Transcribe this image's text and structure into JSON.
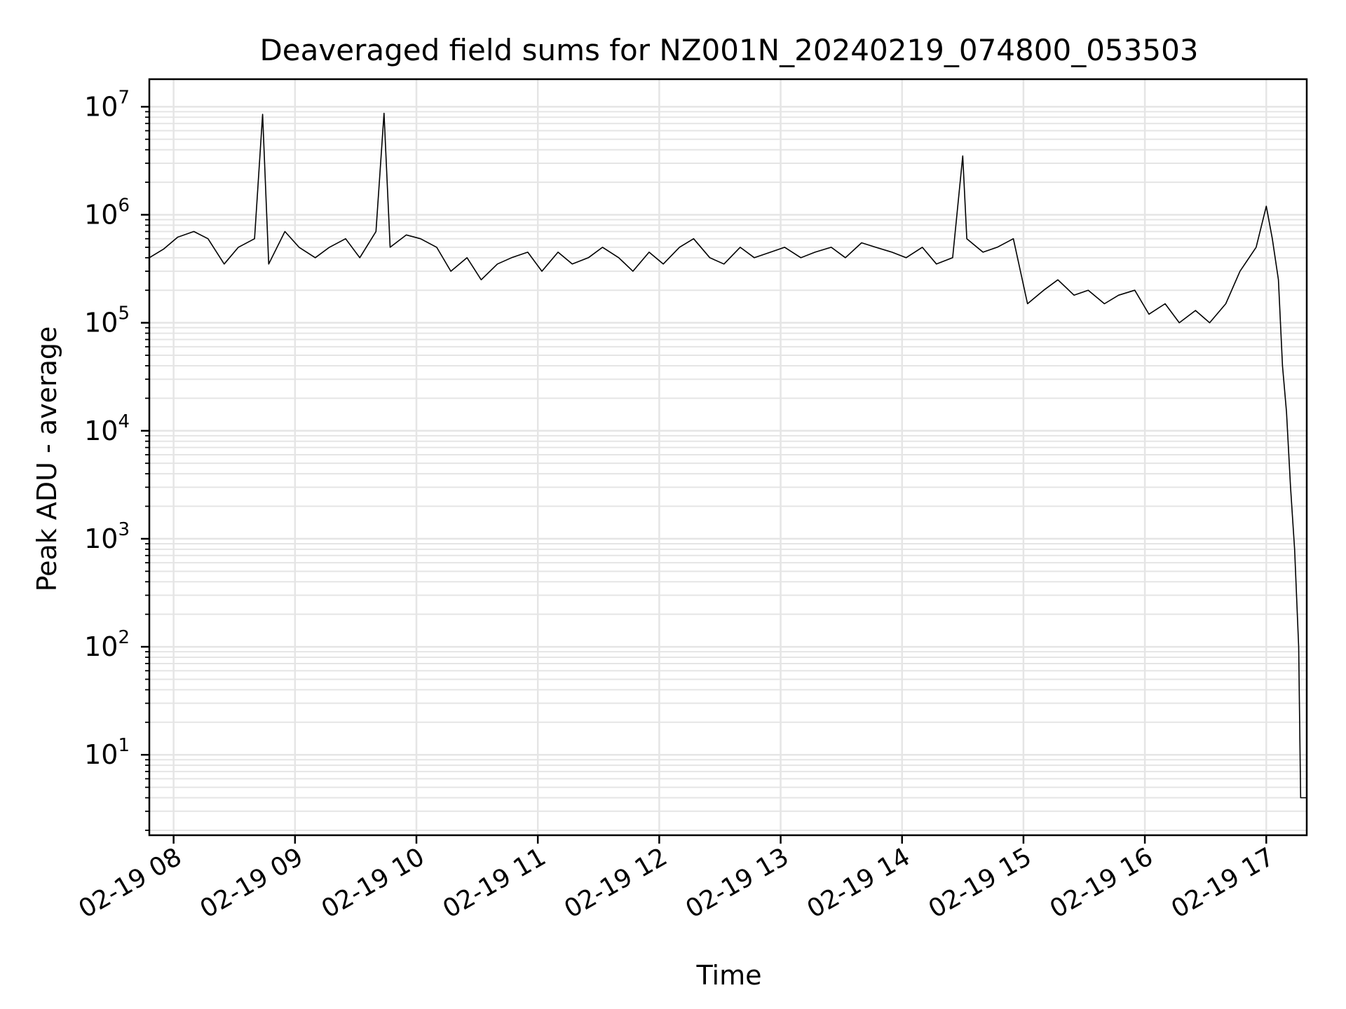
{
  "chart_data": {
    "type": "line",
    "title": "Deaveraged field sums for NZ001N_20240219_074800_053503",
    "xlabel": "Time",
    "ylabel": "Peak ADU - average",
    "yscale": "log",
    "grid": true,
    "grid_minor": true,
    "line_color": "#000000",
    "grid_color": "#e5e5e5",
    "xlim": [
      "2024-02-19 07:48",
      "2024-02-19 17:20"
    ],
    "ylim": [
      1.8,
      18000000
    ],
    "xticks": [
      {
        "value": "2024-02-19 08:00",
        "label": "02-19 08"
      },
      {
        "value": "2024-02-19 09:00",
        "label": "02-19 09"
      },
      {
        "value": "2024-02-19 10:00",
        "label": "02-19 10"
      },
      {
        "value": "2024-02-19 11:00",
        "label": "02-19 11"
      },
      {
        "value": "2024-02-19 12:00",
        "label": "02-19 12"
      },
      {
        "value": "2024-02-19 13:00",
        "label": "02-19 13"
      },
      {
        "value": "2024-02-19 14:00",
        "label": "02-19 14"
      },
      {
        "value": "2024-02-19 15:00",
        "label": "02-19 15"
      },
      {
        "value": "2024-02-19 16:00",
        "label": "02-19 16"
      },
      {
        "value": "2024-02-19 17:00",
        "label": "02-19 17"
      }
    ],
    "yticks": [
      {
        "value": 10,
        "base": "10",
        "exp": "1"
      },
      {
        "value": 100,
        "base": "10",
        "exp": "2"
      },
      {
        "value": 1000,
        "base": "10",
        "exp": "3"
      },
      {
        "value": 10000,
        "base": "10",
        "exp": "4"
      },
      {
        "value": 100000,
        "base": "10",
        "exp": "5"
      },
      {
        "value": 1000000,
        "base": "10",
        "exp": "6"
      },
      {
        "value": 10000000,
        "base": "10",
        "exp": "7"
      }
    ],
    "series": [
      {
        "x": [
          "2024-02-19 07:48",
          "2024-02-19 07:55",
          "2024-02-19 08:02",
          "2024-02-19 08:10",
          "2024-02-19 08:17",
          "2024-02-19 08:25",
          "2024-02-19 08:32",
          "2024-02-19 08:40",
          "2024-02-19 08:44",
          "2024-02-19 08:47",
          "2024-02-19 08:55",
          "2024-02-19 09:02",
          "2024-02-19 09:10",
          "2024-02-19 09:17",
          "2024-02-19 09:25",
          "2024-02-19 09:32",
          "2024-02-19 09:40",
          "2024-02-19 09:44",
          "2024-02-19 09:47",
          "2024-02-19 09:55",
          "2024-02-19 10:02",
          "2024-02-19 10:10",
          "2024-02-19 10:17",
          "2024-02-19 10:25",
          "2024-02-19 10:32",
          "2024-02-19 10:40",
          "2024-02-19 10:47",
          "2024-02-19 10:55",
          "2024-02-19 11:02",
          "2024-02-19 11:10",
          "2024-02-19 11:17",
          "2024-02-19 11:25",
          "2024-02-19 11:32",
          "2024-02-19 11:40",
          "2024-02-19 11:47",
          "2024-02-19 11:55",
          "2024-02-19 12:02",
          "2024-02-19 12:10",
          "2024-02-19 12:17",
          "2024-02-19 12:25",
          "2024-02-19 12:32",
          "2024-02-19 12:40",
          "2024-02-19 12:47",
          "2024-02-19 12:55",
          "2024-02-19 13:02",
          "2024-02-19 13:10",
          "2024-02-19 13:17",
          "2024-02-19 13:25",
          "2024-02-19 13:32",
          "2024-02-19 13:40",
          "2024-02-19 13:47",
          "2024-02-19 13:55",
          "2024-02-19 14:02",
          "2024-02-19 14:10",
          "2024-02-19 14:17",
          "2024-02-19 14:25",
          "2024-02-19 14:30",
          "2024-02-19 14:32",
          "2024-02-19 14:40",
          "2024-02-19 14:47",
          "2024-02-19 14:55",
          "2024-02-19 15:02",
          "2024-02-19 15:10",
          "2024-02-19 15:17",
          "2024-02-19 15:25",
          "2024-02-19 15:32",
          "2024-02-19 15:40",
          "2024-02-19 15:47",
          "2024-02-19 15:55",
          "2024-02-19 16:02",
          "2024-02-19 16:10",
          "2024-02-19 16:17",
          "2024-02-19 16:25",
          "2024-02-19 16:32",
          "2024-02-19 16:40",
          "2024-02-19 16:47",
          "2024-02-19 16:55",
          "2024-02-19 17:00",
          "2024-02-19 17:03",
          "2024-02-19 17:06",
          "2024-02-19 17:08",
          "2024-02-19 17:10",
          "2024-02-19 17:12",
          "2024-02-19 17:14",
          "2024-02-19 17:16",
          "2024-02-19 17:17",
          "2024-02-19 17:18",
          "2024-02-19 17:20"
        ],
        "y": [
          400000,
          480000,
          620000,
          700000,
          600000,
          350000,
          500000,
          600000,
          8500000,
          350000,
          700000,
          500000,
          400000,
          500000,
          600000,
          400000,
          700000,
          8700000,
          500000,
          650000,
          600000,
          500000,
          300000,
          400000,
          250000,
          350000,
          400000,
          450000,
          300000,
          450000,
          350000,
          400000,
          500000,
          400000,
          300000,
          450000,
          350000,
          500000,
          600000,
          400000,
          350000,
          500000,
          400000,
          450000,
          500000,
          400000,
          450000,
          500000,
          400000,
          550000,
          500000,
          450000,
          400000,
          500000,
          350000,
          400000,
          3500000,
          600000,
          450000,
          500000,
          600000,
          150000,
          200000,
          250000,
          180000,
          200000,
          150000,
          180000,
          200000,
          120000,
          150000,
          100000,
          130000,
          100000,
          150000,
          300000,
          500000,
          1200000,
          600000,
          250000,
          40000,
          15000,
          3000,
          800,
          100,
          4,
          4,
          4
        ]
      }
    ]
  }
}
